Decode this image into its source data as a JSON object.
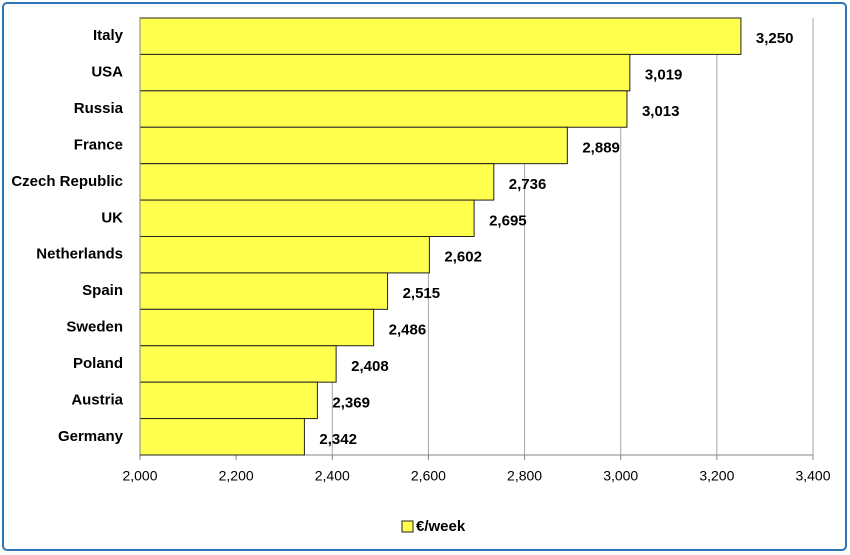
{
  "chart_data": {
    "type": "hbar",
    "categories": [
      "Italy",
      "USA",
      "Russia",
      "France",
      "Czech Republic",
      "UK",
      "Netherlands",
      "Spain",
      "Sweden",
      "Poland",
      "Austria",
      "Germany"
    ],
    "series": [
      {
        "name": "€/week",
        "color": "#ffff4d",
        "values": [
          3250,
          3019,
          3013,
          2889,
          2736,
          2695,
          2602,
          2515,
          2486,
          2408,
          2369,
          2342
        ],
        "value_labels": [
          "3,250",
          "3,019",
          "3,013",
          "2,889",
          "2,736",
          "2,695",
          "2,602",
          "2,515",
          "2,486",
          "2,408",
          "2,369",
          "2,342"
        ]
      }
    ],
    "xlim": [
      2000,
      3400
    ],
    "xticks": [
      {
        "value": 2000,
        "label": "2,000"
      },
      {
        "value": 2200,
        "label": "2,200"
      },
      {
        "value": 2400,
        "label": "2,400"
      },
      {
        "value": 2600,
        "label": "2,600"
      },
      {
        "value": 2800,
        "label": "2,800"
      },
      {
        "value": 3000,
        "label": "3,000"
      },
      {
        "value": 3200,
        "label": "3,200"
      },
      {
        "value": 3400,
        "label": "3,400"
      }
    ],
    "grid": true
  }
}
